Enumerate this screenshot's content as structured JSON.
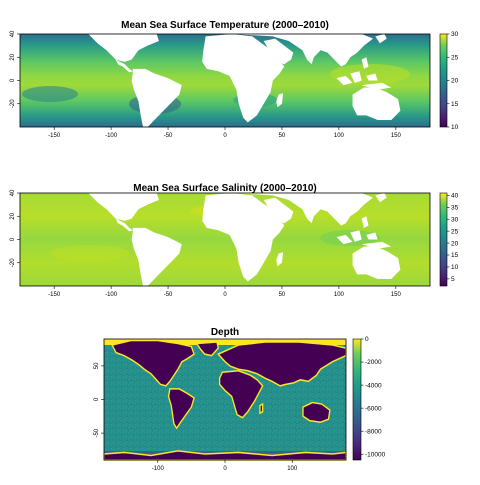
{
  "chart_data": [
    {
      "type": "heatmap",
      "title": "Mean Sea Surface Temperature (2000–2010)",
      "xlabel": "",
      "ylabel": "",
      "xlim": [
        -180,
        180
      ],
      "ylim": [
        -40,
        40
      ],
      "x_ticks": [
        -150,
        -100,
        -50,
        0,
        50,
        100,
        150
      ],
      "y_ticks": [
        -20,
        0,
        20,
        40
      ],
      "y_tick_labels": [
        "-20",
        "0",
        "20",
        "40"
      ],
      "colorbar": {
        "min": 10,
        "max": 30,
        "ticks": [
          10,
          15,
          20,
          25,
          30
        ]
      },
      "colormap": "viridis",
      "land_color": "#ffffff"
    },
    {
      "type": "heatmap",
      "title": "Mean Sea Surface Salinity (2000–2010)",
      "xlabel": "",
      "ylabel": "",
      "xlim": [
        -180,
        180
      ],
      "ylim": [
        -40,
        40
      ],
      "x_ticks": [
        -150,
        -100,
        -50,
        0,
        50,
        100,
        150
      ],
      "y_ticks": [
        -20,
        0,
        20,
        40
      ],
      "y_tick_labels": [
        "-20",
        "0",
        "20",
        "40"
      ],
      "colorbar": {
        "min": 2,
        "max": 41,
        "ticks": [
          5,
          10,
          15,
          20,
          25,
          30,
          35,
          40
        ]
      },
      "colormap": "viridis",
      "land_color": "#ffffff"
    },
    {
      "type": "heatmap",
      "title": "Depth",
      "xlabel": "",
      "ylabel": "",
      "xlim": [
        -180,
        180
      ],
      "ylim": [
        -90,
        90
      ],
      "x_ticks": [
        -100,
        0,
        100
      ],
      "y_ticks": [
        -50,
        0,
        50
      ],
      "y_tick_labels": [
        "-50",
        "0",
        "50"
      ],
      "colorbar": {
        "min": -10500,
        "max": 0,
        "ticks": [
          -10000,
          -8000,
          -6000,
          -4000,
          -2000,
          0
        ]
      },
      "colormap": "viridis",
      "land_color": "#440154"
    }
  ]
}
